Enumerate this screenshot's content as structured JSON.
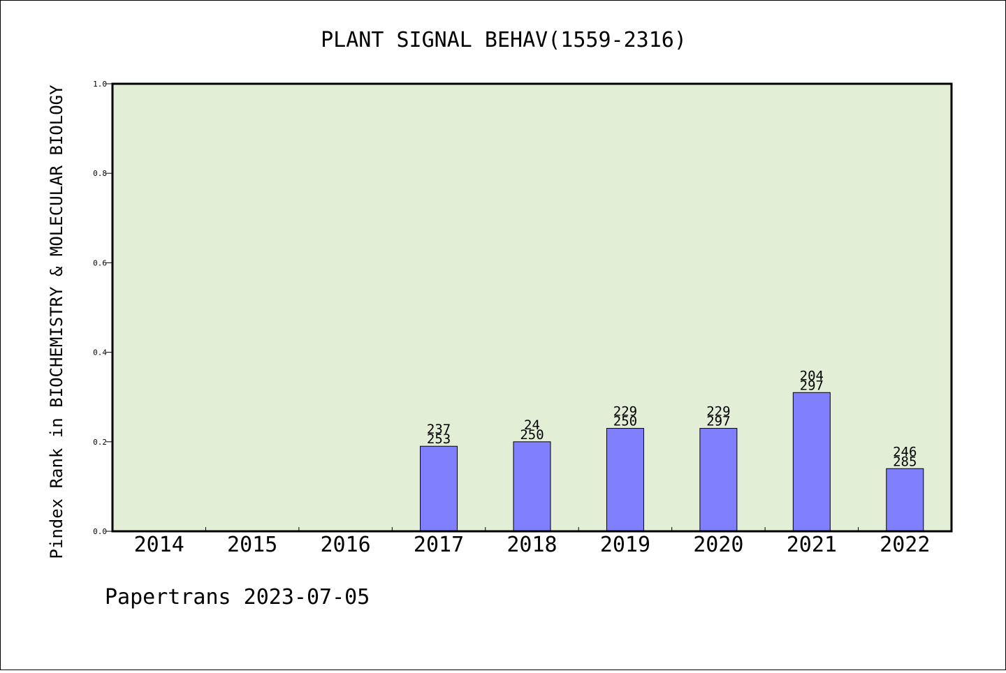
{
  "chart_data": {
    "type": "bar",
    "title": "PLANT SIGNAL BEHAV(1559-2316)",
    "xlabel": "",
    "ylabel": "Pindex Rank in BIOCHEMISTRY & MOLECULAR BIOLOGY",
    "ylim": [
      0,
      1.0
    ],
    "yticks": [
      "0.0",
      "0.2",
      "0.4",
      "0.6",
      "0.8",
      "1.0"
    ],
    "grid": false,
    "categories": [
      "2014",
      "2015",
      "2016",
      "2017",
      "2018",
      "2019",
      "2020",
      "2021",
      "2022"
    ],
    "values": [
      null,
      null,
      null,
      0.19,
      0.2,
      0.23,
      0.23,
      0.31,
      0.14
    ],
    "labels_top": [
      "",
      "",
      "",
      "237",
      "24",
      "229",
      "229",
      "204",
      "246"
    ],
    "labels_bottom": [
      "",
      "",
      "",
      "253",
      "250",
      "250",
      "297",
      "297",
      "285"
    ],
    "colors": {
      "plot_background": "#e2efd6",
      "bar_fill": "#8080ff",
      "bar_stroke": "#000000"
    }
  },
  "footer": "Papertrans 2023-07-05"
}
